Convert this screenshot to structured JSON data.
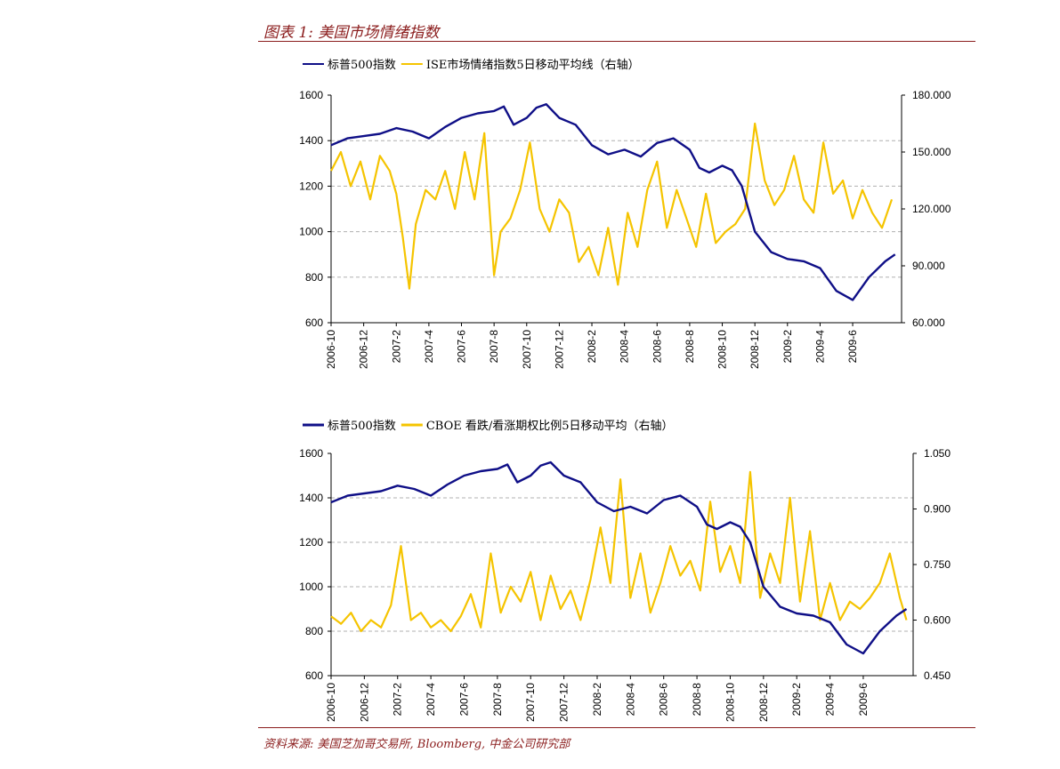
{
  "figure_title": "图表 1: 美国市场情绪指数",
  "source": "资料来源: 美国芝加哥交易所, Bloomberg, 中金公司研究部",
  "colors": {
    "sp500": "#0f0f87",
    "sentiment": "#f5c400",
    "accent": "#8b1d1d",
    "grid": "#b0b0b0"
  },
  "chart_data": [
    {
      "type": "line",
      "legend": [
        "标普500指数",
        "ISE市场情绪指数5日移动平均线（右轴）"
      ],
      "x_tick_labels": [
        "2006-10",
        "2006-12",
        "2007-2",
        "2007-4",
        "2007-6",
        "2007-8",
        "2007-10",
        "2007-12",
        "2008-2",
        "2008-4",
        "2008-6",
        "2008-8",
        "2008-10",
        "2008-12",
        "2009-2",
        "2009-4",
        "2009-6"
      ],
      "left_axis": {
        "ylim": [
          600,
          1600
        ],
        "ticks": [
          "600",
          "800",
          "1000",
          "1200",
          "1400",
          "1600"
        ]
      },
      "right_axis": {
        "ylim": [
          60,
          180
        ],
        "ticks": [
          "60.000",
          "90.000",
          "120.000",
          "150.000",
          "180.000"
        ]
      },
      "x_range": [
        0,
        17.5
      ],
      "series": [
        {
          "name": "标普500指数",
          "axis": "left",
          "x": [
            0,
            0.5,
            1,
            1.5,
            2,
            2.5,
            3,
            3.5,
            4,
            4.5,
            5,
            5.3,
            5.6,
            6,
            6.3,
            6.6,
            7,
            7.5,
            8,
            8.5,
            9,
            9.5,
            10,
            10.5,
            11,
            11.3,
            11.6,
            12,
            12.3,
            12.6,
            13,
            13.5,
            14,
            14.5,
            15,
            15.5,
            16,
            16.5,
            17,
            17.3
          ],
          "y": [
            1380,
            1410,
            1420,
            1430,
            1455,
            1440,
            1410,
            1460,
            1500,
            1520,
            1530,
            1550,
            1470,
            1500,
            1545,
            1560,
            1500,
            1470,
            1380,
            1340,
            1360,
            1330,
            1390,
            1410,
            1360,
            1280,
            1260,
            1290,
            1270,
            1200,
            1000,
            910,
            880,
            870,
            840,
            740,
            700,
            800,
            870,
            900
          ]
        },
        {
          "name": "ISE市场情绪指数5日移动平均线（右轴）",
          "axis": "right",
          "x": [
            0,
            0.3,
            0.6,
            0.9,
            1.2,
            1.5,
            1.8,
            2.0,
            2.2,
            2.4,
            2.6,
            2.9,
            3.2,
            3.5,
            3.8,
            4.1,
            4.4,
            4.7,
            5.0,
            5.2,
            5.5,
            5.8,
            6.1,
            6.4,
            6.7,
            7.0,
            7.3,
            7.6,
            7.9,
            8.2,
            8.5,
            8.8,
            9.1,
            9.4,
            9.7,
            10.0,
            10.3,
            10.6,
            10.9,
            11.2,
            11.5,
            11.8,
            12.1,
            12.4,
            12.7,
            13.0,
            13.3,
            13.6,
            13.9,
            14.2,
            14.5,
            14.8,
            15.1,
            15.4,
            15.7,
            16.0,
            16.3,
            16.6,
            16.9,
            17.2
          ],
          "y": [
            140,
            150,
            132,
            145,
            125,
            148,
            140,
            128,
            105,
            78,
            112,
            130,
            125,
            140,
            120,
            150,
            125,
            160,
            85,
            108,
            115,
            130,
            155,
            120,
            108,
            125,
            118,
            92,
            100,
            85,
            110,
            80,
            118,
            100,
            130,
            145,
            110,
            130,
            115,
            100,
            128,
            102,
            108,
            112,
            120,
            165,
            135,
            122,
            130,
            148,
            125,
            118,
            155,
            128,
            135,
            115,
            130,
            118,
            110,
            125
          ]
        }
      ]
    },
    {
      "type": "line",
      "legend": [
        "标普500指数",
        "CBOE 看跌/看涨期权比例5日移动平均（右轴）"
      ],
      "x_tick_labels": [
        "2006-10",
        "2006-12",
        "2007-2",
        "2007-4",
        "2007-6",
        "2007-8",
        "2007-10",
        "2007-12",
        "2008-2",
        "2008-4",
        "2008-6",
        "2008-8",
        "2008-10",
        "2008-12",
        "2009-2",
        "2009-4",
        "2009-6"
      ],
      "left_axis": {
        "ylim": [
          600,
          1600
        ],
        "ticks": [
          "600",
          "800",
          "1000",
          "1200",
          "1400",
          "1600"
        ]
      },
      "right_axis": {
        "ylim": [
          0.45,
          1.05
        ],
        "ticks": [
          "0.450",
          "0.600",
          "0.750",
          "0.900",
          "1.050"
        ]
      },
      "x_range": [
        0,
        17.5
      ],
      "series": [
        {
          "name": "标普500指数",
          "axis": "left",
          "x": [
            0,
            0.5,
            1,
            1.5,
            2,
            2.5,
            3,
            3.5,
            4,
            4.5,
            5,
            5.3,
            5.6,
            6,
            6.3,
            6.6,
            7,
            7.5,
            8,
            8.5,
            9,
            9.5,
            10,
            10.5,
            11,
            11.3,
            11.6,
            12,
            12.3,
            12.6,
            13,
            13.5,
            14,
            14.5,
            15,
            15.5,
            16,
            16.5,
            17,
            17.3
          ],
          "y": [
            1380,
            1410,
            1420,
            1430,
            1455,
            1440,
            1410,
            1460,
            1500,
            1520,
            1530,
            1550,
            1470,
            1500,
            1545,
            1560,
            1500,
            1470,
            1380,
            1340,
            1360,
            1330,
            1390,
            1410,
            1360,
            1280,
            1260,
            1290,
            1270,
            1200,
            1000,
            910,
            880,
            870,
            840,
            740,
            700,
            800,
            870,
            900
          ]
        },
        {
          "name": "CBOE 看跌/看涨期权比例5日移动平均（右轴）",
          "axis": "right",
          "x": [
            0,
            0.3,
            0.6,
            0.9,
            1.2,
            1.5,
            1.8,
            2.1,
            2.4,
            2.7,
            3.0,
            3.3,
            3.6,
            3.9,
            4.2,
            4.5,
            4.8,
            5.1,
            5.4,
            5.7,
            6.0,
            6.3,
            6.6,
            6.9,
            7.2,
            7.5,
            7.8,
            8.1,
            8.4,
            8.7,
            9.0,
            9.3,
            9.6,
            9.9,
            10.2,
            10.5,
            10.8,
            11.1,
            11.4,
            11.7,
            12.0,
            12.3,
            12.6,
            12.9,
            13.2,
            13.5,
            13.8,
            14.1,
            14.4,
            14.7,
            15.0,
            15.3,
            15.6,
            15.9,
            16.2,
            16.5,
            16.8,
            17.1,
            17.3
          ],
          "y": [
            0.61,
            0.59,
            0.62,
            0.57,
            0.6,
            0.58,
            0.64,
            0.8,
            0.6,
            0.62,
            0.58,
            0.6,
            0.57,
            0.61,
            0.67,
            0.58,
            0.78,
            0.62,
            0.69,
            0.65,
            0.73,
            0.6,
            0.72,
            0.63,
            0.68,
            0.6,
            0.71,
            0.85,
            0.7,
            0.98,
            0.66,
            0.78,
            0.62,
            0.7,
            0.8,
            0.72,
            0.76,
            0.68,
            0.92,
            0.73,
            0.8,
            0.7,
            1.0,
            0.66,
            0.78,
            0.7,
            0.93,
            0.65,
            0.84,
            0.6,
            0.7,
            0.6,
            0.65,
            0.63,
            0.66,
            0.7,
            0.78,
            0.66,
            0.6
          ]
        }
      ]
    }
  ]
}
